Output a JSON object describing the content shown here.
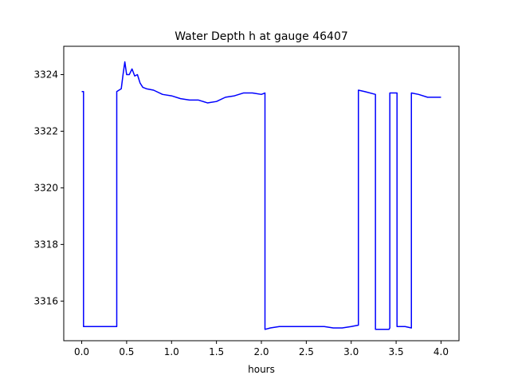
{
  "chart_data": {
    "type": "line",
    "title": "Water Depth h at gauge 46407",
    "xlabel": "hours",
    "ylabel": "",
    "xlim": [
      -0.2,
      4.2
    ],
    "ylim": [
      3314.6,
      3325.0
    ],
    "xticks": [
      0.0,
      0.5,
      1.0,
      1.5,
      2.0,
      2.5,
      3.0,
      3.5,
      4.0
    ],
    "xtick_labels": [
      "0.0",
      "0.5",
      "1.0",
      "1.5",
      "2.0",
      "2.5",
      "3.0",
      "3.5",
      "4.0"
    ],
    "yticks": [
      3316,
      3318,
      3320,
      3322,
      3324
    ],
    "ytick_labels": [
      "3316",
      "3318",
      "3320",
      "3322",
      "3324"
    ],
    "grid": false,
    "series": [
      {
        "color": "#0000ff",
        "x": [
          0.0,
          0.02,
          0.02,
          0.1,
          0.2,
          0.3,
          0.39,
          0.39,
          0.44,
          0.46,
          0.48,
          0.5,
          0.53,
          0.56,
          0.59,
          0.62,
          0.65,
          0.68,
          0.72,
          0.8,
          0.9,
          1.0,
          1.1,
          1.2,
          1.3,
          1.4,
          1.5,
          1.6,
          1.7,
          1.8,
          1.9,
          2.0,
          2.04,
          2.04,
          2.1,
          2.2,
          2.3,
          2.5,
          2.7,
          2.8,
          2.9,
          3.0,
          3.08,
          3.08,
          3.15,
          3.27,
          3.27,
          3.3,
          3.42,
          3.43,
          3.43,
          3.5,
          3.51,
          3.51,
          3.6,
          3.67,
          3.67,
          3.75,
          3.85,
          3.95,
          4.0
        ],
        "y": [
          3323.4,
          3323.4,
          3315.1,
          3315.1,
          3315.1,
          3315.1,
          3315.1,
          3323.4,
          3323.5,
          3324.0,
          3324.45,
          3324.0,
          3324.0,
          3324.2,
          3323.95,
          3324.0,
          3323.7,
          3323.55,
          3323.5,
          3323.45,
          3323.3,
          3323.25,
          3323.15,
          3323.1,
          3323.1,
          3323.0,
          3323.05,
          3323.2,
          3323.25,
          3323.35,
          3323.35,
          3323.3,
          3323.35,
          3315.0,
          3315.05,
          3315.1,
          3315.1,
          3315.1,
          3315.1,
          3315.05,
          3315.05,
          3315.1,
          3315.15,
          3323.45,
          3323.4,
          3323.3,
          3315.0,
          3315.0,
          3315.0,
          3315.05,
          3323.35,
          3323.35,
          3323.35,
          3315.1,
          3315.1,
          3315.05,
          3323.35,
          3323.3,
          3323.2,
          3323.2,
          3323.2
        ]
      }
    ]
  }
}
